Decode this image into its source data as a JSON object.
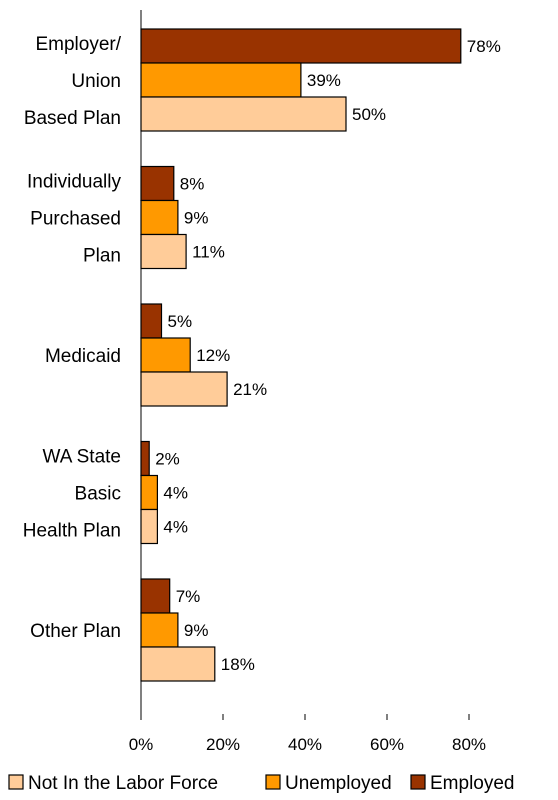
{
  "chart_data": {
    "type": "bar",
    "orientation": "horizontal",
    "categories": [
      [
        "Employer/",
        "Union",
        "Based Plan"
      ],
      [
        "Individually",
        "Purchased",
        "Plan"
      ],
      [
        "Medicaid"
      ],
      [
        "WA State",
        "Basic",
        "Health Plan"
      ],
      [
        "Other Plan"
      ]
    ],
    "series": [
      {
        "name": "Employed",
        "color": "#993300",
        "values": [
          78,
          8,
          5,
          2,
          7
        ],
        "labels": [
          "78%",
          "8%",
          "5%",
          "2%",
          "7%"
        ]
      },
      {
        "name": "Unemployed",
        "color": "#FF9900",
        "values": [
          39,
          9,
          12,
          4,
          9
        ],
        "labels": [
          "39%",
          "9%",
          "12%",
          "4%",
          "9%"
        ]
      },
      {
        "name": "Not In the Labor Force",
        "color": "#FFCC99",
        "values": [
          50,
          11,
          21,
          4,
          18
        ],
        "labels": [
          "50%",
          "11%",
          "21%",
          "4%",
          "18%"
        ]
      }
    ],
    "legend_order": [
      2,
      1,
      0
    ],
    "xlim": [
      0,
      80
    ],
    "xticks": [
      0,
      20,
      40,
      60,
      80
    ],
    "xtick_labels": [
      "0%",
      "20%",
      "40%",
      "60%",
      "80%"
    ],
    "grid": false,
    "legend_position": "bottom"
  }
}
